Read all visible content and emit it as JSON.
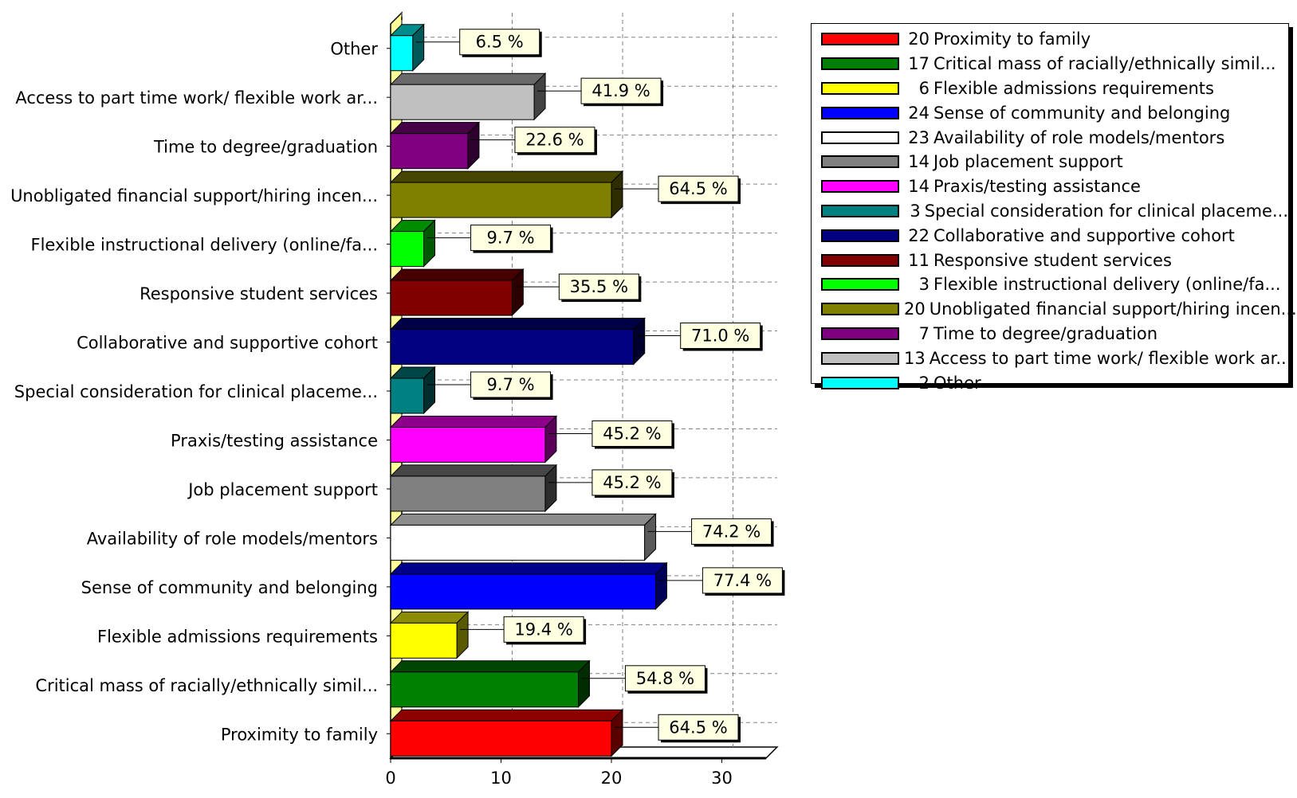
{
  "chart_data": {
    "type": "bar",
    "orientation": "horizontal",
    "three_d": true,
    "categories": [
      "Proximity to family",
      "Critical mass of racially/ethnically simil...",
      "Flexible admissions requirements",
      "Sense of community and belonging",
      "Availability of role models/mentors",
      "Job placement support",
      "Praxis/testing assistance",
      "Special consideration for clinical placeme...",
      "Collaborative and supportive cohort",
      "Responsive student services",
      "Flexible instructional delivery (online/fa...",
      "Unobligated financial support/hiring incen...",
      "Time to degree/graduation",
      "Access to part time work/ flexible work ar...",
      "Other"
    ],
    "values": [
      20,
      17,
      6,
      24,
      23,
      14,
      14,
      3,
      22,
      11,
      3,
      20,
      7,
      13,
      2
    ],
    "percent_labels": [
      "64.5 %",
      "54.8 %",
      "19.4 %",
      "77.4 %",
      "74.2 %",
      "45.2 %",
      "45.2 %",
      "9.7 %",
      "71.0 %",
      "35.5 %",
      "9.7 %",
      "64.5 %",
      "22.6 %",
      "41.9 %",
      "6.5 %"
    ],
    "colors": [
      "#ff0000",
      "#008000",
      "#ffff00",
      "#0000ff",
      "#ffffff",
      "#808080",
      "#ff00ff",
      "#008080",
      "#000080",
      "#800000",
      "#00ff00",
      "#808000",
      "#800080",
      "#c0c0c0",
      "#00ffff"
    ],
    "xlim": [
      0,
      34
    ],
    "x_ticks": [
      "0",
      "10",
      "20",
      "30"
    ],
    "grid": true,
    "legend_position": "right",
    "legend_entries": [
      {
        "count": "20",
        "label": "Proximity to family"
      },
      {
        "count": "17",
        "label": "Critical mass of racially/ethnically simil..."
      },
      {
        "count": "6",
        "label": "Flexible admissions requirements"
      },
      {
        "count": "24",
        "label": "Sense of community and belonging"
      },
      {
        "count": "23",
        "label": "Availability of role models/mentors"
      },
      {
        "count": "14",
        "label": "Job placement support"
      },
      {
        "count": "14",
        "label": "Praxis/testing assistance"
      },
      {
        "count": "3",
        "label": "Special consideration for clinical placeme..."
      },
      {
        "count": "22",
        "label": "Collaborative and supportive cohort"
      },
      {
        "count": "11",
        "label": "Responsive student services"
      },
      {
        "count": "3",
        "label": "Flexible instructional delivery (online/fa..."
      },
      {
        "count": "20",
        "label": "Unobligated financial support/hiring incen..."
      },
      {
        "count": "7",
        "label": "Time to degree/graduation"
      },
      {
        "count": "13",
        "label": "Access to part time work/ flexible work ar..."
      },
      {
        "count": "2",
        "label": "Other"
      }
    ]
  }
}
